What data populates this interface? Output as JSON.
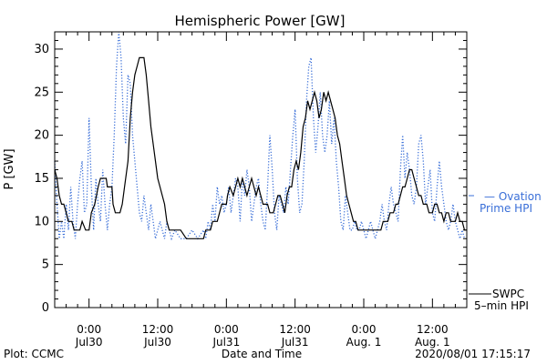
{
  "chart_data": {
    "type": "line",
    "title": "Hemispheric Power [GW]",
    "xlabel": "Date and Time",
    "ylabel": "P [GW]",
    "ylim": [
      0,
      32
    ],
    "xlim": [
      -6,
      66
    ],
    "x_unit": "hours relative to 2020-07-30 00:00 UT",
    "yticks": [
      0,
      5,
      10,
      15,
      20,
      25,
      30
    ],
    "xticks": [
      {
        "x": 0,
        "line1": "0:00",
        "line2": "Jul30"
      },
      {
        "x": 12,
        "line1": "12:00",
        "line2": "Jul30"
      },
      {
        "x": 24,
        "line1": "0:00",
        "line2": "Jul31"
      },
      {
        "x": 36,
        "line1": "12:00",
        "line2": "Jul31"
      },
      {
        "x": 48,
        "line1": "0:00",
        "line2": "Aug. 1"
      },
      {
        "x": 60,
        "line1": "12:00",
        "line2": "Aug. 1"
      }
    ],
    "grid": false,
    "legend_position": "right",
    "series": [
      {
        "name_lines": [
          "— Ovation",
          "Prime HPI"
        ],
        "color": "#3a6fd8",
        "style": "dotted",
        "points": [
          [
            -6,
            17
          ],
          [
            -5.6,
            12
          ],
          [
            -5.2,
            8
          ],
          [
            -4.8,
            10
          ],
          [
            -4.4,
            8
          ],
          [
            -4,
            12
          ],
          [
            -3.6,
            9
          ],
          [
            -3.2,
            14
          ],
          [
            -2.8,
            10
          ],
          [
            -2.4,
            8
          ],
          [
            -2,
            12
          ],
          [
            -1.6,
            15
          ],
          [
            -1.2,
            17
          ],
          [
            -0.8,
            11
          ],
          [
            -0.4,
            12
          ],
          [
            0,
            22
          ],
          [
            0.4,
            14
          ],
          [
            0.8,
            9
          ],
          [
            1.2,
            15
          ],
          [
            1.6,
            12
          ],
          [
            2,
            10
          ],
          [
            2.4,
            16
          ],
          [
            2.8,
            12
          ],
          [
            3.2,
            9
          ],
          [
            3.6,
            12
          ],
          [
            4,
            14
          ],
          [
            4.4,
            20
          ],
          [
            4.8,
            28
          ],
          [
            5.2,
            32
          ],
          [
            5.6,
            29
          ],
          [
            6,
            22
          ],
          [
            6.4,
            19
          ],
          [
            6.8,
            27
          ],
          [
            7.2,
            26
          ],
          [
            7.6,
            20
          ],
          [
            8,
            17
          ],
          [
            8.4,
            14
          ],
          [
            8.8,
            11
          ],
          [
            9.2,
            10
          ],
          [
            9.6,
            13
          ],
          [
            10,
            11
          ],
          [
            10.4,
            9
          ],
          [
            10.8,
            12
          ],
          [
            11.2,
            10
          ],
          [
            11.6,
            8
          ],
          [
            12,
            9
          ],
          [
            12.4,
            10
          ],
          [
            12.8,
            9
          ],
          [
            13.2,
            8
          ],
          [
            13.6,
            10
          ],
          [
            14,
            9
          ],
          [
            14.4,
            8
          ],
          [
            15,
            9
          ],
          [
            16,
            8
          ],
          [
            17,
            8
          ],
          [
            18,
            9
          ],
          [
            19,
            8
          ],
          [
            20,
            9
          ],
          [
            20.4,
            8
          ],
          [
            20.8,
            10
          ],
          [
            21.2,
            9
          ],
          [
            21.6,
            12
          ],
          [
            22,
            10
          ],
          [
            22.4,
            14
          ],
          [
            22.8,
            12
          ],
          [
            23.2,
            13
          ],
          [
            23.6,
            11
          ],
          [
            24,
            12
          ],
          [
            24.4,
            14
          ],
          [
            24.8,
            11
          ],
          [
            25.2,
            13
          ],
          [
            25.6,
            15
          ],
          [
            26,
            14
          ],
          [
            26.4,
            10
          ],
          [
            26.8,
            15
          ],
          [
            27.2,
            13
          ],
          [
            27.6,
            16
          ],
          [
            28,
            14
          ],
          [
            28.4,
            10
          ],
          [
            28.8,
            12
          ],
          [
            29.2,
            14
          ],
          [
            29.6,
            15
          ],
          [
            30,
            12
          ],
          [
            30.4,
            10
          ],
          [
            30.8,
            9
          ],
          [
            31.2,
            14
          ],
          [
            31.6,
            20
          ],
          [
            32,
            16
          ],
          [
            32.4,
            11
          ],
          [
            32.8,
            9
          ],
          [
            33.2,
            13
          ],
          [
            33.6,
            12
          ],
          [
            34,
            11
          ],
          [
            34.4,
            14
          ],
          [
            34.8,
            12
          ],
          [
            35.2,
            16
          ],
          [
            35.6,
            20
          ],
          [
            36,
            23
          ],
          [
            36.4,
            15
          ],
          [
            36.8,
            11
          ],
          [
            37.2,
            12
          ],
          [
            37.6,
            17
          ],
          [
            38,
            24
          ],
          [
            38.4,
            28
          ],
          [
            38.8,
            29
          ],
          [
            39.2,
            22
          ],
          [
            39.6,
            18
          ],
          [
            40,
            21
          ],
          [
            40.4,
            25
          ],
          [
            40.8,
            20
          ],
          [
            41.2,
            18
          ],
          [
            41.6,
            20
          ],
          [
            42,
            24
          ],
          [
            42.4,
            19
          ],
          [
            42.8,
            22
          ],
          [
            43.2,
            17
          ],
          [
            43.6,
            14
          ],
          [
            44,
            10
          ],
          [
            44.4,
            9
          ],
          [
            44.8,
            13
          ],
          [
            45.2,
            11
          ],
          [
            45.6,
            9
          ],
          [
            46,
            9
          ],
          [
            46.4,
            10
          ],
          [
            46.8,
            9
          ],
          [
            47.2,
            9
          ],
          [
            47.6,
            10
          ],
          [
            48,
            9
          ],
          [
            48.4,
            8
          ],
          [
            48.8,
            9
          ],
          [
            49.2,
            10
          ],
          [
            49.6,
            9
          ],
          [
            50,
            8
          ],
          [
            50.4,
            9
          ],
          [
            50.8,
            10
          ],
          [
            51.2,
            12
          ],
          [
            51.6,
            10
          ],
          [
            52,
            9
          ],
          [
            52.4,
            12
          ],
          [
            52.8,
            14
          ],
          [
            53.2,
            12
          ],
          [
            53.6,
            11
          ],
          [
            54,
            10
          ],
          [
            54.4,
            16
          ],
          [
            54.8,
            20
          ],
          [
            55.2,
            15
          ],
          [
            55.6,
            18
          ],
          [
            56,
            16
          ],
          [
            56.4,
            13
          ],
          [
            56.8,
            12
          ],
          [
            57.2,
            14
          ],
          [
            57.6,
            19
          ],
          [
            58,
            20
          ],
          [
            58.4,
            17
          ],
          [
            58.8,
            12
          ],
          [
            59.2,
            14
          ],
          [
            59.6,
            16
          ],
          [
            60,
            11
          ],
          [
            60.4,
            10
          ],
          [
            60.8,
            14
          ],
          [
            61.2,
            17
          ],
          [
            61.6,
            14
          ],
          [
            62,
            12
          ],
          [
            62.4,
            10
          ],
          [
            62.8,
            9
          ],
          [
            63.2,
            10
          ],
          [
            63.6,
            12
          ],
          [
            64,
            10
          ],
          [
            64.4,
            9
          ],
          [
            64.8,
            8
          ],
          [
            65.2,
            9
          ],
          [
            65.6,
            8
          ]
        ]
      },
      {
        "name_lines": [
          "SWPC",
          "5–min HPI"
        ],
        "color": "#000000",
        "style": "solid",
        "points": [
          [
            -6,
            16
          ],
          [
            -5.6,
            15
          ],
          [
            -5.2,
            13
          ],
          [
            -4.8,
            12
          ],
          [
            -4.4,
            12
          ],
          [
            -4,
            11
          ],
          [
            -3.6,
            10
          ],
          [
            -3,
            10
          ],
          [
            -2.6,
            9
          ],
          [
            -1.6,
            9
          ],
          [
            -1.2,
            10
          ],
          [
            -0.6,
            9
          ],
          [
            0,
            9
          ],
          [
            0.4,
            11
          ],
          [
            1,
            12
          ],
          [
            1.6,
            14
          ],
          [
            2,
            15
          ],
          [
            3,
            15
          ],
          [
            3.2,
            14
          ],
          [
            4,
            14
          ],
          [
            4.2,
            12
          ],
          [
            4.6,
            11
          ],
          [
            5.4,
            11
          ],
          [
            5.8,
            12
          ],
          [
            6.2,
            14
          ],
          [
            6.8,
            17
          ],
          [
            7.2,
            22
          ],
          [
            7.6,
            25
          ],
          [
            8,
            27
          ],
          [
            8.4,
            28
          ],
          [
            8.8,
            29
          ],
          [
            9.6,
            29
          ],
          [
            10,
            27
          ],
          [
            10.4,
            24
          ],
          [
            10.8,
            21
          ],
          [
            11.2,
            19
          ],
          [
            11.6,
            17
          ],
          [
            12,
            15
          ],
          [
            12.4,
            14
          ],
          [
            12.8,
            13
          ],
          [
            13.2,
            12
          ],
          [
            13.6,
            10
          ],
          [
            14,
            9
          ],
          [
            15,
            9
          ],
          [
            16,
            9
          ],
          [
            17,
            8
          ],
          [
            19,
            8
          ],
          [
            20,
            8
          ],
          [
            20.4,
            9
          ],
          [
            21.2,
            9
          ],
          [
            21.6,
            10
          ],
          [
            22.4,
            10
          ],
          [
            22.8,
            11
          ],
          [
            23.2,
            12
          ],
          [
            24,
            12
          ],
          [
            24.2,
            13
          ],
          [
            24.6,
            14
          ],
          [
            25.2,
            13
          ],
          [
            25.6,
            14
          ],
          [
            26,
            15
          ],
          [
            26.4,
            14
          ],
          [
            26.8,
            15
          ],
          [
            27.2,
            14
          ],
          [
            27.6,
            13
          ],
          [
            28,
            14
          ],
          [
            28.4,
            15
          ],
          [
            28.8,
            14
          ],
          [
            29.2,
            13
          ],
          [
            29.6,
            14
          ],
          [
            30,
            13
          ],
          [
            30.4,
            12
          ],
          [
            31.2,
            12
          ],
          [
            31.6,
            11
          ],
          [
            32.2,
            11
          ],
          [
            32.6,
            12
          ],
          [
            33,
            13
          ],
          [
            33.4,
            13
          ],
          [
            33.8,
            12
          ],
          [
            34.2,
            11
          ],
          [
            34.6,
            13
          ],
          [
            35,
            14
          ],
          [
            35.4,
            14
          ],
          [
            35.8,
            16
          ],
          [
            36.2,
            17
          ],
          [
            36.6,
            16
          ],
          [
            37,
            18
          ],
          [
            37.4,
            21
          ],
          [
            37.8,
            22
          ],
          [
            38.2,
            24
          ],
          [
            38.6,
            23
          ],
          [
            39,
            24
          ],
          [
            39.4,
            25
          ],
          [
            39.8,
            24
          ],
          [
            40.2,
            22
          ],
          [
            40.6,
            23
          ],
          [
            41,
            25
          ],
          [
            41.4,
            24
          ],
          [
            41.8,
            25
          ],
          [
            42.2,
            24
          ],
          [
            42.6,
            23
          ],
          [
            43,
            22
          ],
          [
            43.4,
            20
          ],
          [
            43.8,
            19
          ],
          [
            44.2,
            17
          ],
          [
            44.6,
            15
          ],
          [
            45,
            13
          ],
          [
            45.4,
            12
          ],
          [
            45.8,
            11
          ],
          [
            46.2,
            10
          ],
          [
            46.6,
            10
          ],
          [
            47,
            9
          ],
          [
            48,
            9
          ],
          [
            49,
            9
          ],
          [
            50,
            9
          ],
          [
            51,
            9
          ],
          [
            51.4,
            10
          ],
          [
            52.2,
            10
          ],
          [
            52.6,
            11
          ],
          [
            53.2,
            11
          ],
          [
            53.6,
            12
          ],
          [
            54,
            12
          ],
          [
            54.4,
            13
          ],
          [
            54.8,
            14
          ],
          [
            55.2,
            14
          ],
          [
            55.6,
            15
          ],
          [
            56,
            16
          ],
          [
            56.4,
            16
          ],
          [
            56.8,
            15
          ],
          [
            57.2,
            14
          ],
          [
            57.6,
            13
          ],
          [
            58,
            13
          ],
          [
            58.4,
            12
          ],
          [
            59,
            12
          ],
          [
            59.4,
            11
          ],
          [
            60,
            11
          ],
          [
            60.4,
            12
          ],
          [
            60.8,
            12
          ],
          [
            61.2,
            11
          ],
          [
            61.6,
            11
          ],
          [
            62,
            10
          ],
          [
            62.4,
            11
          ],
          [
            62.8,
            11
          ],
          [
            63.2,
            10
          ],
          [
            64,
            10
          ],
          [
            64.4,
            11
          ],
          [
            64.8,
            10
          ],
          [
            65.2,
            10
          ],
          [
            65.6,
            9
          ],
          [
            66,
            9
          ]
        ]
      }
    ]
  },
  "footer": {
    "left": "Plot: CCMC",
    "right": "2020/08/01 17:15:17"
  }
}
